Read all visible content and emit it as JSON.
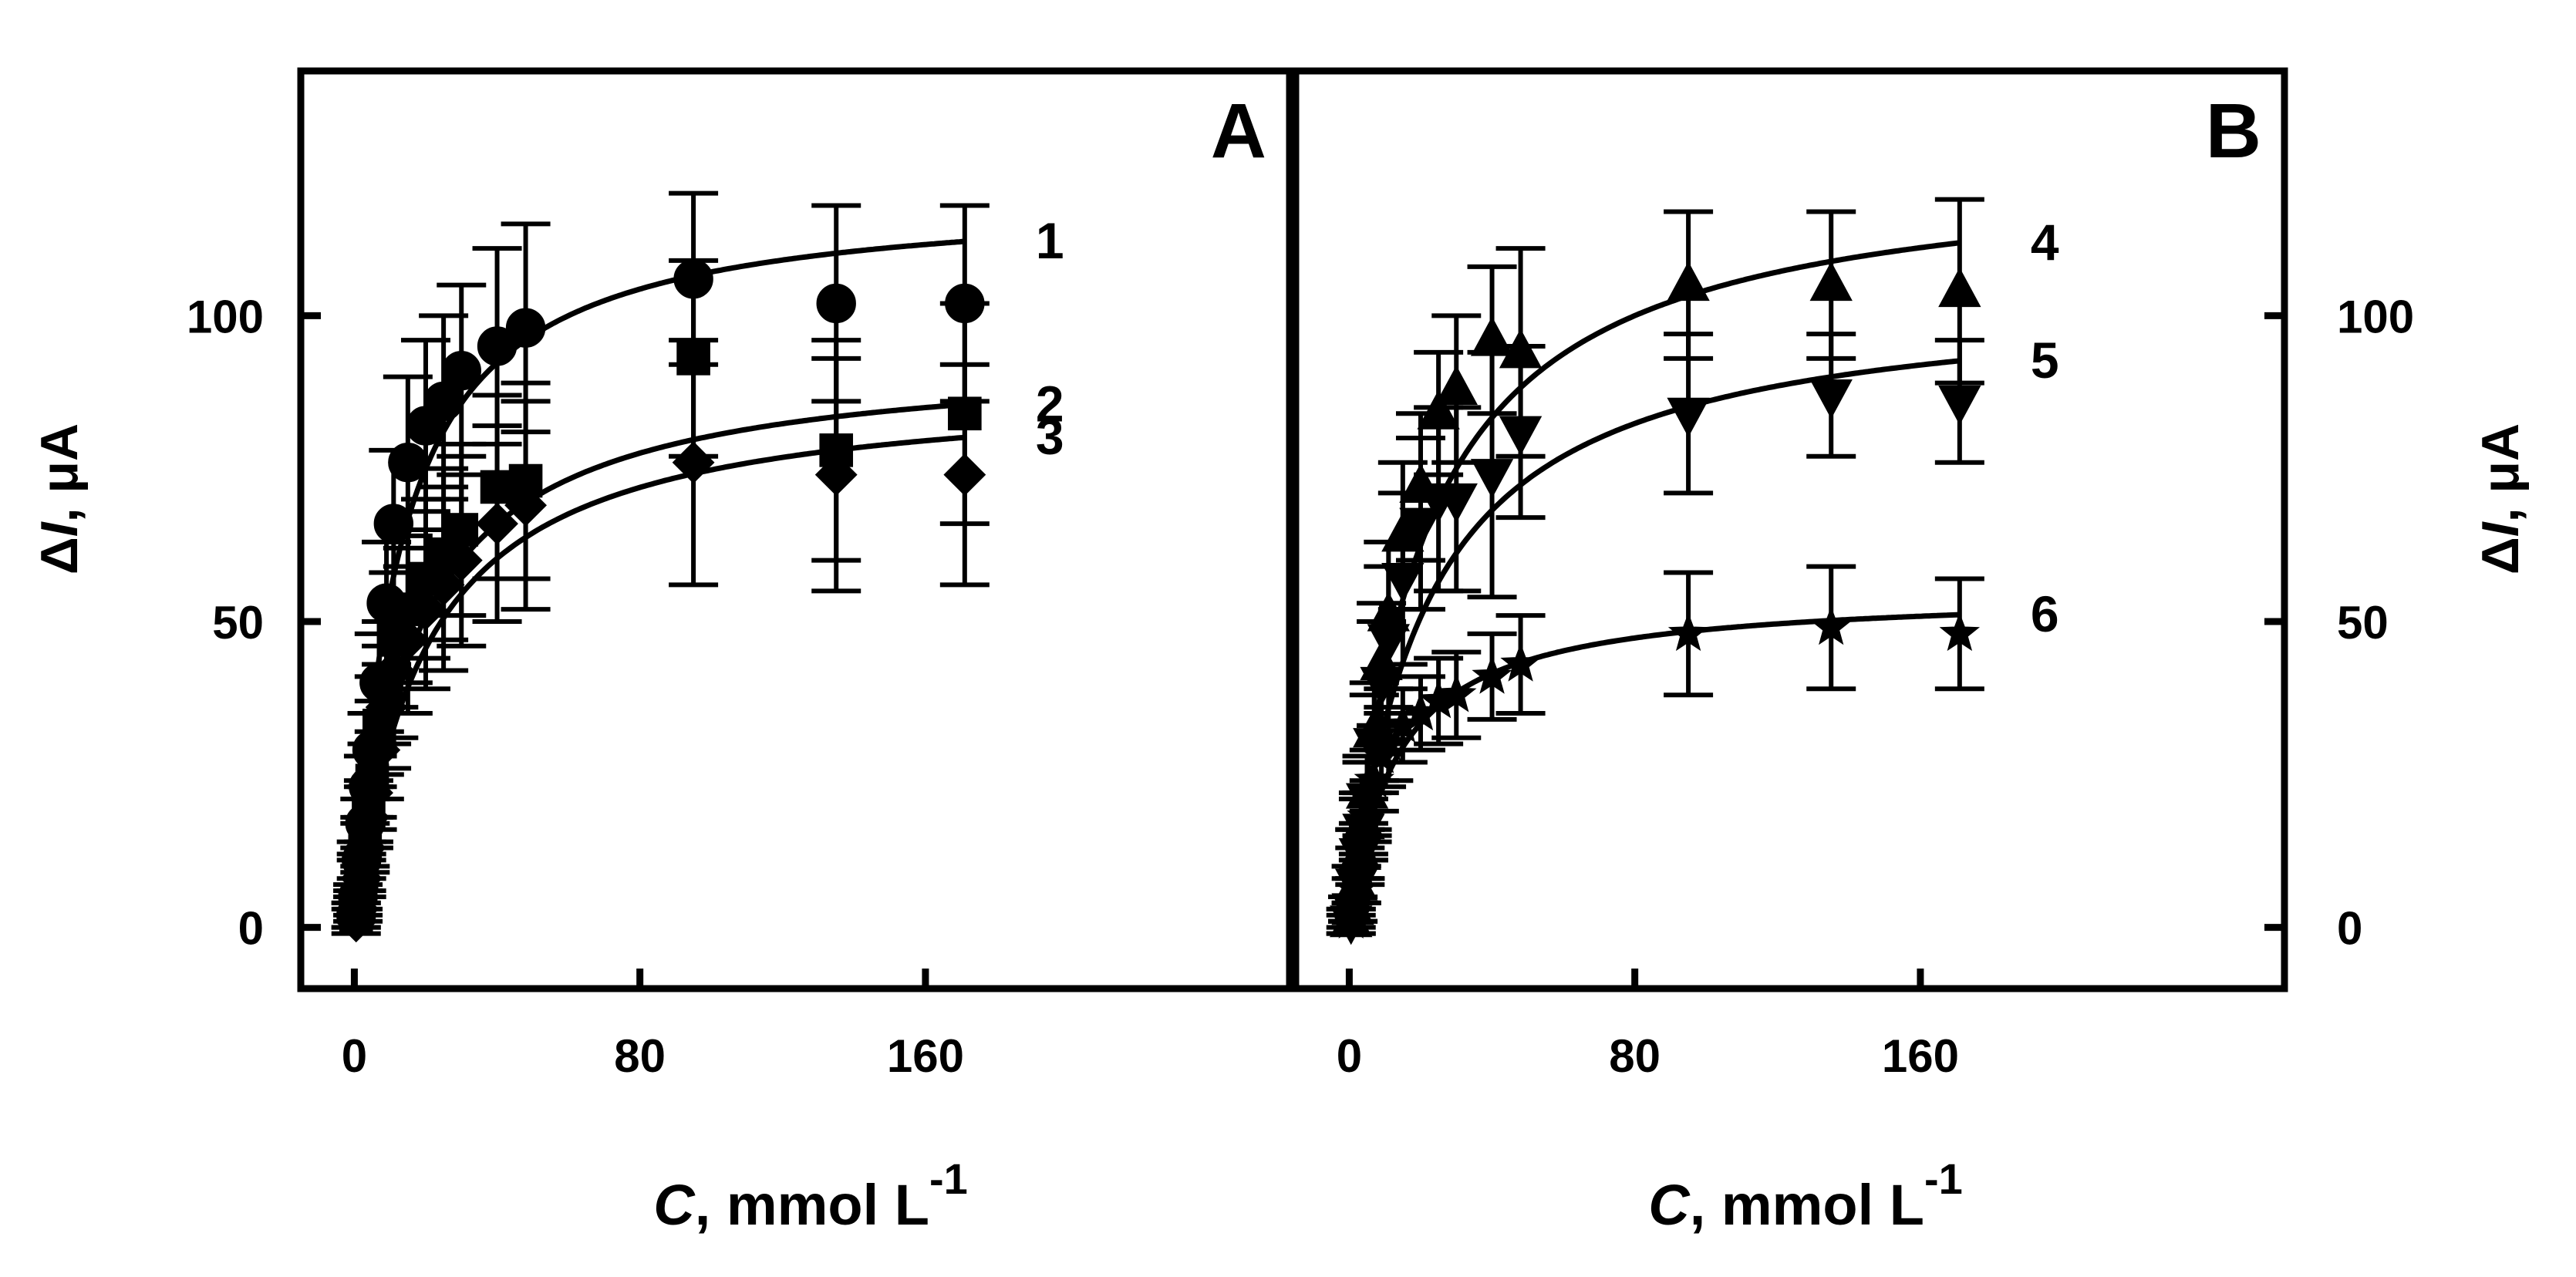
{
  "colors": {
    "ink": "#000000",
    "background": "#ffffff"
  },
  "chart_data": [
    {
      "type": "scatter",
      "panel_label": "A",
      "xlabel": {
        "italic": "C",
        "rest": ", mmol L",
        "sup": "-1"
      },
      "ylabel": {
        "prefix": "Δ",
        "italic": "I",
        "rest": ", μA"
      },
      "y_axis_side": "left",
      "xlim": [
        -15,
        262
      ],
      "ylim": [
        -10,
        140
      ],
      "xticks": [
        0,
        80,
        160
      ],
      "xtick_labels": [
        "0",
        "80",
        "160"
      ],
      "yticks": [
        0,
        50,
        100
      ],
      "ytick_labels": [
        "0",
        "50",
        "100"
      ],
      "series": [
        {
          "name": "1",
          "marker": "circle",
          "x": [
            0.5,
            1,
            2,
            3,
            4,
            5,
            7,
            9,
            11,
            15,
            20,
            25,
            30,
            40,
            48,
            95,
            135,
            171
          ],
          "y": [
            2,
            5,
            11,
            17,
            23,
            29,
            40,
            53,
            66,
            76,
            82,
            86,
            91,
            95,
            98,
            106,
            102,
            102
          ],
          "err": [
            2,
            2,
            3,
            4,
            5,
            6,
            8,
            10,
            12,
            14,
            14,
            14,
            14,
            16,
            17,
            14,
            16,
            16
          ],
          "fit": {
            "vmax": 120,
            "km": 12
          }
        },
        {
          "name": "2",
          "marker": "square",
          "x": [
            0.5,
            1,
            2,
            3,
            4,
            5,
            7,
            9,
            11,
            15,
            20,
            25,
            30,
            40,
            48,
            95,
            135,
            171
          ],
          "y": [
            2,
            4,
            9,
            14,
            19,
            24,
            33,
            40,
            47,
            52,
            57,
            61,
            65,
            72,
            73,
            93,
            78,
            84
          ],
          "err": [
            2,
            2,
            3,
            4,
            5,
            6,
            8,
            10,
            11,
            12,
            13,
            14,
            14,
            15,
            16,
            16,
            18,
            18
          ],
          "fit": {
            "vmax": 94,
            "km": 17
          }
        },
        {
          "name": "3",
          "marker": "diamond",
          "x": [
            0.5,
            1,
            2,
            3,
            4,
            5,
            7,
            9,
            11,
            15,
            20,
            25,
            30,
            40,
            48,
            95,
            135,
            171
          ],
          "y": [
            1,
            3,
            8,
            13,
            18,
            22,
            29,
            36,
            42,
            47,
            52,
            56,
            60,
            66,
            69,
            76,
            74,
            74
          ],
          "err": [
            2,
            2,
            3,
            4,
            5,
            6,
            8,
            10,
            11,
            12,
            13,
            14,
            14,
            16,
            17,
            20,
            19,
            18
          ],
          "fit": {
            "vmax": 89,
            "km": 19
          }
        }
      ]
    },
    {
      "type": "scatter",
      "panel_label": "B",
      "xlabel": {
        "italic": "C",
        "rest": ", mmol L",
        "sup": "-1"
      },
      "ylabel": {
        "prefix": "Δ",
        "italic": "I",
        "rest": ", μA"
      },
      "y_axis_side": "right",
      "xlim": [
        -15,
        262
      ],
      "ylim": [
        -10,
        140
      ],
      "xticks": [
        0,
        80,
        160
      ],
      "xtick_labels": [
        "0",
        "80",
        "160"
      ],
      "yticks": [
        0,
        50,
        100
      ],
      "ytick_labels": [
        "0",
        "50",
        "100"
      ],
      "series": [
        {
          "name": "4",
          "marker": "triangle-up",
          "x": [
            0.5,
            1,
            2,
            3,
            4,
            5,
            7,
            9,
            11,
            15,
            20,
            25,
            30,
            40,
            48,
            95,
            135,
            171
          ],
          "y": [
            1,
            3,
            7,
            12,
            17,
            22,
            32,
            43,
            51,
            64,
            72,
            84,
            88,
            96,
            94,
            105,
            105,
            104
          ],
          "err": [
            2,
            2,
            3,
            4,
            5,
            6,
            8,
            10,
            12,
            12,
            12,
            10,
            12,
            12,
            17,
            12,
            12,
            15
          ],
          "fit": {
            "vmax": 125,
            "km": 20
          }
        },
        {
          "name": "5",
          "marker": "triangle-down",
          "x": [
            0.5,
            1,
            2,
            3,
            4,
            5,
            7,
            9,
            11,
            15,
            20,
            25,
            30,
            40,
            48,
            95,
            135,
            171
          ],
          "y": [
            1,
            3,
            7,
            12,
            16,
            21,
            30,
            40,
            47,
            57,
            66,
            70,
            70,
            74,
            81,
            84,
            87,
            86
          ],
          "err": [
            2,
            2,
            3,
            4,
            5,
            6,
            8,
            10,
            12,
            14,
            14,
            15,
            15,
            20,
            14,
            13,
            10,
            10
          ],
          "fit": {
            "vmax": 104,
            "km": 21
          }
        },
        {
          "name": "6",
          "marker": "star",
          "x": [
            0.5,
            1,
            2,
            3,
            4,
            5,
            7,
            9,
            11,
            15,
            20,
            25,
            30,
            40,
            48,
            95,
            135,
            171
          ],
          "y": [
            1,
            3,
            6,
            10,
            14,
            18,
            24,
            28,
            30,
            33,
            35,
            37,
            38,
            41,
            43,
            48,
            49,
            48
          ],
          "err": [
            1,
            2,
            2,
            3,
            3,
            4,
            5,
            5,
            6,
            6,
            6,
            7,
            7,
            7,
            8,
            10,
            10,
            9
          ],
          "fit": {
            "vmax": 55,
            "km": 13
          }
        }
      ]
    }
  ]
}
